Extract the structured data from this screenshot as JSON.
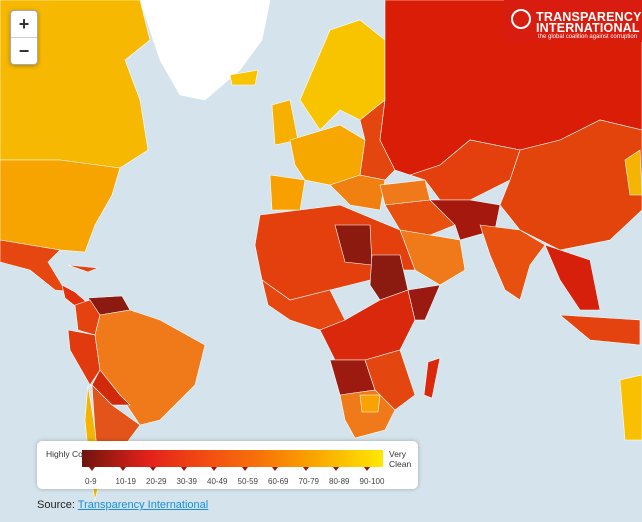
{
  "zoom_controls": {
    "zoom_in": "+",
    "zoom_out": "−"
  },
  "logo": {
    "line1": "TRANSPARENCY",
    "line2": "INTERNATIONAL",
    "tagline": "the global coalition against corruption"
  },
  "legend": {
    "low_label": "Highly Corrupt",
    "high_label": "Very Clean",
    "ranges": [
      "0-9",
      "10-19",
      "20-29",
      "30-39",
      "40-49",
      "50-59",
      "60-69",
      "70-79",
      "80-89",
      "90-100"
    ],
    "colors": [
      "#6e1410",
      "#9a1a12",
      "#e3201b",
      "#ef3a12",
      "#f24a12",
      "#f7700a",
      "#f88a04",
      "#f9a200",
      "#fbbf00",
      "#ffe800"
    ]
  },
  "source": {
    "label": "Source:",
    "link_text": "Transparency International"
  },
  "map_colors": {
    "ocean": "#d5e3ec",
    "no_data": "#ffffff"
  }
}
